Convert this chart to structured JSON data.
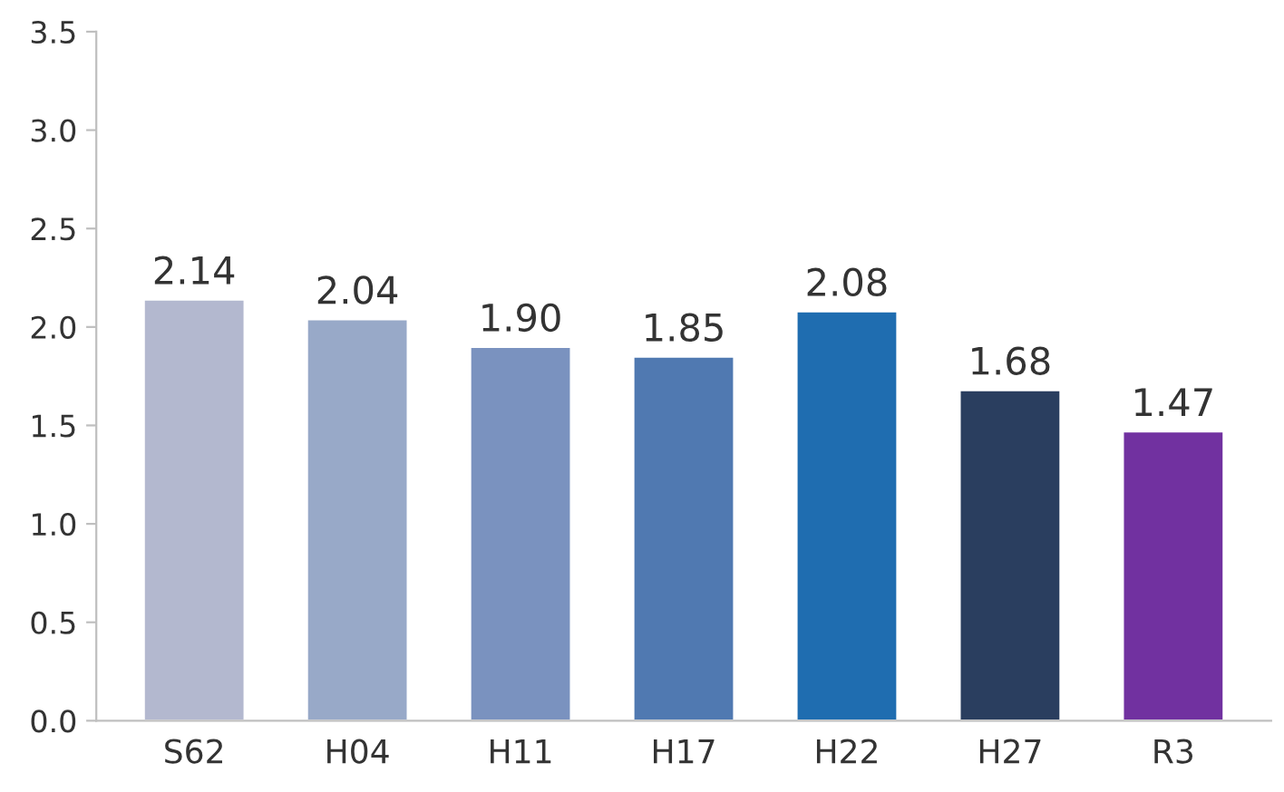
{
  "chart_data": {
    "type": "bar",
    "categories": [
      "S62",
      "H04",
      "H11",
      "H17",
      "H22",
      "H27",
      "R3"
    ],
    "values": [
      2.14,
      2.04,
      1.9,
      1.85,
      2.08,
      1.68,
      1.47
    ],
    "colors": [
      "#b3b8cf",
      "#98a9c8",
      "#7a92bf",
      "#5079b1",
      "#1f6db0",
      "#2a3e5f",
      "#7131a0"
    ],
    "ylim": [
      0,
      3.5
    ],
    "yticks": [
      {
        "value": 0,
        "label": "0.0"
      },
      {
        "value": 0.5,
        "label": "0.5"
      },
      {
        "value": 1,
        "label": "1.0"
      },
      {
        "value": 1.5,
        "label": "1.5"
      },
      {
        "value": 2,
        "label": "2.0"
      },
      {
        "value": 2.5,
        "label": "2.5"
      },
      {
        "value": 3,
        "label": "3.0"
      },
      {
        "value": 3.5,
        "label": "3.5"
      }
    ],
    "value_labels": [
      "2.14",
      "2.04",
      "1.90",
      "1.85",
      "2.08",
      "1.68",
      "1.47"
    ],
    "grid": false,
    "legend": false
  }
}
